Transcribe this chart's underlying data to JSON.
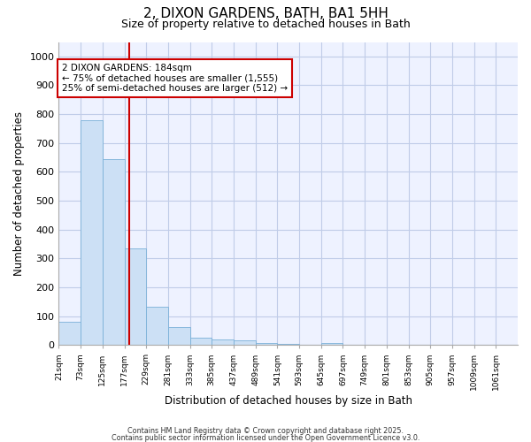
{
  "title_line1": "2, DIXON GARDENS, BATH, BA1 5HH",
  "title_line2": "Size of property relative to detached houses in Bath",
  "xlabel": "Distribution of detached houses by size in Bath",
  "ylabel": "Number of detached properties",
  "bin_labels": [
    "21sqm",
    "73sqm",
    "125sqm",
    "177sqm",
    "229sqm",
    "281sqm",
    "333sqm",
    "385sqm",
    "437sqm",
    "489sqm",
    "541sqm",
    "593sqm",
    "645sqm",
    "697sqm",
    "749sqm",
    "801sqm",
    "853sqm",
    "905sqm",
    "957sqm",
    "1009sqm",
    "1061sqm"
  ],
  "bar_values": [
    82,
    780,
    645,
    335,
    133,
    62,
    25,
    18,
    15,
    8,
    5,
    0,
    8,
    0,
    0,
    0,
    0,
    0,
    0,
    0,
    0
  ],
  "bar_color": "#cce0f5",
  "bar_edge_color": "#7ab0d8",
  "property_line_x": 3.23,
  "property_line_color": "#cc0000",
  "annotation_text": "2 DIXON GARDENS: 184sqm\n← 75% of detached houses are smaller (1,555)\n25% of semi-detached houses are larger (512) →",
  "annotation_box_color": "#cc0000",
  "ylim": [
    0,
    1050
  ],
  "yticks": [
    0,
    100,
    200,
    300,
    400,
    500,
    600,
    700,
    800,
    900,
    1000
  ],
  "footer_line1": "Contains HM Land Registry data © Crown copyright and database right 2025.",
  "footer_line2": "Contains public sector information licensed under the Open Government Licence v3.0.",
  "background_color": "#eef2ff",
  "grid_color": "#c0cce8"
}
